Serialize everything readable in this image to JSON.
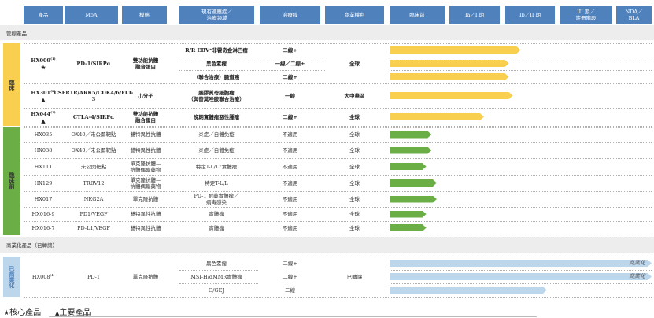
{
  "headers": [
    "產品",
    "MoA",
    "模態",
    "現有適應症／\n治療領域",
    "治療線",
    "商業權利",
    "臨床前",
    "Ia／I 期",
    "Ib／II 期",
    "III 期／\n註冊階段",
    "NDA／\nBLA"
  ],
  "pipeline_band": "管線產品",
  "commercial_band": "商業化產品（已轉讓）",
  "colors": {
    "header": "#4f81bd",
    "clinical": "#f9cf4f",
    "preclinical": "#6aae45",
    "commercial": "#bcd6ec"
  },
  "groups": [
    {
      "label": "臨床",
      "color": "#f9cf4f",
      "bold": true,
      "products": [
        {
          "name": "HX009",
          "note": "(1)",
          "marker": "★",
          "moa": "PD-1/SIRPα",
          "modality": "雙功能抗體\n融合蛋白",
          "rights": "全球",
          "indications": [
            {
              "text": "R/R EBV⁺非霍奇金淋巴瘤",
              "line": "二線+",
              "progress": 0.5
            },
            {
              "text": "黑色素瘤",
              "line": "一線／二線+",
              "progress": 0.455
            },
            {
              "text": "（聯合治療）膽道癌",
              "line": "二線+",
              "progress": 0.455
            }
          ]
        },
        {
          "name": "HX301",
          "note": "(2)",
          "marker": "▲",
          "moa": "CSFR1R/ARK5/CDK4/6/FLT-3",
          "modality": "小分子",
          "rights": "大中華區",
          "indications": [
            {
              "text": "腦膠質母細胞瘤\n（與替莫唑胺聯合治療）",
              "line": "一線",
              "progress": 0.47
            }
          ]
        },
        {
          "name": "HX044",
          "note": "(3)",
          "marker": "▲",
          "moa": "CTLA-4/SIRPα",
          "modality": "雙功能抗體\n融合蛋白",
          "rights": "全球",
          "indications": [
            {
              "text": "晚期實體瘤惡性腫瘤",
              "line": "二線+",
              "progress": 0.36
            }
          ]
        }
      ]
    },
    {
      "label": "臨床前",
      "color": "#6aae45",
      "bold": false,
      "products": [
        {
          "name": "HX035",
          "moa": "OX40／未公開靶點",
          "modality": "雙特異性抗體",
          "rights": "全球",
          "indications": [
            {
              "text": "炎症／自體免疫",
              "line": "不適用",
              "progress": 0.16
            }
          ]
        },
        {
          "name": "HX038",
          "moa": "OX40／未公開靶點",
          "modality": "雙特異性抗體",
          "rights": "全球",
          "indications": [
            {
              "text": "炎症／自體免疫",
              "line": "不適用",
              "progress": 0.16
            }
          ]
        },
        {
          "name": "HX111",
          "moa": "未公開靶點",
          "modality": "單克隆抗體—\n抗體偶聯藥物",
          "rights": "全球",
          "indications": [
            {
              "text": "特定T-L/L⁺實體瘤",
              "line": "不適用",
              "progress": 0.14
            }
          ]
        },
        {
          "name": "HX129",
          "moa": "TRBV12",
          "modality": "單克隆抗體—\n抗體偶聯藥物",
          "rights": "全球",
          "indications": [
            {
              "text": "特定T-L/L",
              "line": "不適用",
              "progress": 0.18
            }
          ]
        },
        {
          "name": "HX017",
          "moa": "NKG2A",
          "modality": "單克隆抗體",
          "rights": "全球",
          "indications": [
            {
              "text": "PD-1 耐藥實體瘤／\n病毒感染",
              "line": "不適用",
              "progress": 0.18
            }
          ]
        },
        {
          "name": "HX016-9",
          "moa": "PD1/VEGF",
          "modality": "雙特異性抗體",
          "rights": "全球",
          "indications": [
            {
              "text": "實體瘤",
              "line": "不適用",
              "progress": 0.14
            }
          ]
        },
        {
          "name": "HX016-7",
          "moa": "PD-L1/VEGF",
          "modality": "雙特異性抗體",
          "rights": "全球",
          "indications": [
            {
              "text": "實體瘤",
              "line": "不適用",
              "progress": 0.14
            }
          ]
        }
      ]
    },
    {
      "label": "已商業化",
      "color": "#bcd6ec",
      "bold": false,
      "products": [
        {
          "name": "HX008",
          "note": "(4)",
          "moa": "PD-1",
          "modality": "單克隆抗體",
          "rights": "已轉讓",
          "indications": [
            {
              "text": "黑色素瘤",
              "line": "二線+",
              "progress": 1.0,
              "bar_label": "商業化"
            },
            {
              "text": "MSI-H/dMMR實體瘤",
              "line": "二線+",
              "progress": 1.0,
              "bar_label": "商業化"
            },
            {
              "text": "G/GEJ",
              "line": "二線",
              "progress": 0.6
            }
          ]
        }
      ]
    }
  ],
  "legend": [
    {
      "symbol": "★",
      "label": "核心產品"
    },
    {
      "symbol": "▲",
      "label": "主要產品"
    }
  ]
}
